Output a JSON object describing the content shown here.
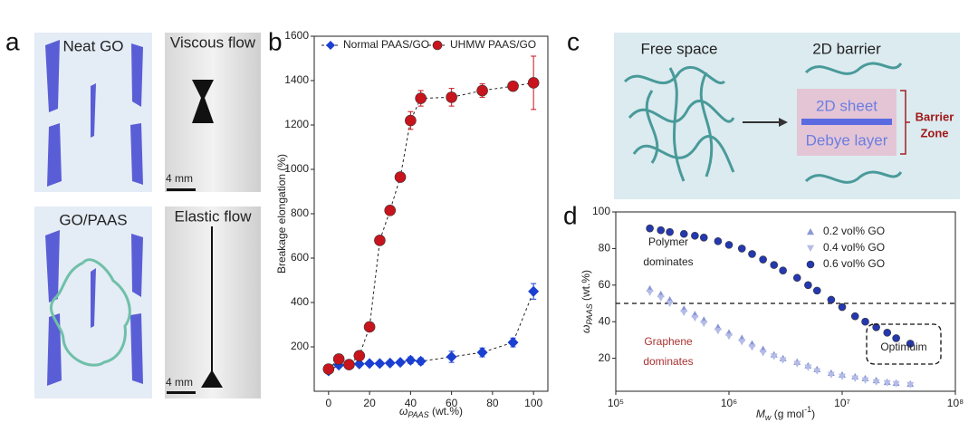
{
  "panel_a": {
    "label": "a",
    "top_left": "Neat GO",
    "top_right": "Viscous flow",
    "top_scale": "4 mm",
    "bottom_left": "GO/PAAS",
    "bottom_right": "Elastic flow",
    "bottom_scale": "4 mm"
  },
  "panel_c": {
    "label": "c",
    "left_title": "Free space",
    "right_title": "2D barrier",
    "sheet": "2D sheet",
    "layer": "Debye layer",
    "zone": [
      "Barrier",
      "Zone"
    ]
  },
  "chart_data": [
    {
      "type": "scatter",
      "panel_label": "b",
      "y_label": "Breakage  elongation (%)",
      "x_label": {
        "symbol": "ω",
        "sub": "PAAS",
        "unit": " (wt.%)"
      },
      "xlim": [
        -7,
        107
      ],
      "xticks": [
        0,
        20,
        40,
        60,
        80,
        100
      ],
      "ylim": [
        0,
        1600
      ],
      "yticks": [
        200,
        400,
        600,
        800,
        1000,
        1200,
        1400,
        1600
      ],
      "connect": true,
      "legend": "top",
      "series": [
        {
          "name": "Normal PAAS/GO",
          "color": "#1a3fd1",
          "marker": "diamond",
          "x": [
            0,
            5,
            10,
            15,
            20,
            25,
            30,
            35,
            40,
            45,
            60,
            75,
            90,
            100
          ],
          "values": [
            92,
            118,
            120,
            123,
            125,
            125,
            127,
            130,
            140,
            135,
            155,
            175,
            220,
            450
          ],
          "errors": [
            10,
            10,
            10,
            10,
            10,
            10,
            10,
            10,
            15,
            15,
            25,
            20,
            20,
            35
          ]
        },
        {
          "name": "UHMW PAAS/GO",
          "color": "#c8141c",
          "marker": "circle",
          "x": [
            0,
            5,
            10,
            15,
            20,
            25,
            30,
            35,
            40,
            45,
            60,
            75,
            90,
            100
          ],
          "values": [
            100,
            145,
            120,
            160,
            290,
            680,
            815,
            965,
            1220,
            1320,
            1325,
            1355,
            1375,
            1390
          ],
          "errors": [
            15,
            10,
            10,
            10,
            15,
            20,
            20,
            20,
            40,
            35,
            40,
            30,
            20,
            120
          ]
        }
      ]
    },
    {
      "type": "scatter",
      "panel_label": "d",
      "y_label": {
        "symbol": "ω",
        "sub": "PAAS",
        "unit": " (wt.%)"
      },
      "x_label": {
        "symbol": "M",
        "sub": "w",
        "unit": " (g mol",
        "sup": "-1",
        "close": ")"
      },
      "xscale": "log",
      "xlim": [
        100000,
        100000000
      ],
      "xticks": [
        {
          "value": 100000,
          "label": "10⁵"
        },
        {
          "value": 1000000,
          "label": "10⁶"
        },
        {
          "value": 10000000,
          "label": "10⁷"
        },
        {
          "value": 100000000,
          "label": "10⁸"
        }
      ],
      "ylim": [
        2,
        100
      ],
      "yticks": [
        20,
        40,
        60,
        80,
        100
      ],
      "connect": false,
      "legend": "upper right",
      "reference_line": 50,
      "annotations": {
        "polymer": [
          "Polymer",
          "dominates"
        ],
        "graphene": [
          "Graphene",
          "dominates"
        ],
        "optimum": "Optimuim"
      },
      "x": [
        200000,
        250000,
        300000,
        400000,
        500000,
        600000,
        800000,
        1000000,
        1300000,
        1600000,
        2000000,
        2500000,
        3000000,
        4000000,
        5000000,
        6000000,
        8000000,
        10000000,
        13000000,
        16000000,
        20000000,
        25000000,
        30000000,
        40000000
      ],
      "series": [
        {
          "name": "0.2 vol% GO",
          "color": "#8a97d6",
          "marker": "triangle",
          "values": [
            58,
            55,
            52,
            47,
            44,
            41,
            37,
            34,
            31,
            28,
            25,
            22,
            20,
            18,
            16,
            14,
            12,
            11,
            10,
            9,
            8,
            7,
            6.5,
            6
          ]
        },
        {
          "name": "0.4 vol% GO",
          "color": "#b4bce6",
          "marker": "triangle-down",
          "values": [
            56,
            53,
            50,
            45,
            42,
            39,
            35,
            32,
            29,
            26,
            23,
            21,
            19,
            17,
            15,
            13,
            11,
            10,
            9,
            8,
            7,
            6.5,
            6,
            5.5
          ]
        },
        {
          "name": "0.6 vol% GO",
          "color": "#2438b0",
          "marker": "circle",
          "values": [
            91,
            90,
            89,
            88,
            87,
            86,
            84,
            82,
            80,
            77,
            74,
            71,
            68,
            64,
            60,
            57,
            52,
            48,
            43,
            40,
            37,
            34,
            31,
            28
          ]
        }
      ]
    }
  ]
}
